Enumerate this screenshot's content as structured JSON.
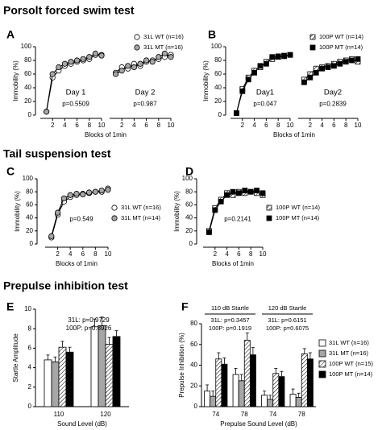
{
  "sections": [
    "Porsolt forced swim test",
    "Tail suspension test",
    "Prepulse inhibition test"
  ],
  "chart_data": [
    {
      "type": "line",
      "panel": "A",
      "xlabel": "Blocks of 1min",
      "ylabel": "Immobility (%)",
      "ylim": [
        0,
        100
      ],
      "yticks": [
        0,
        20,
        40,
        60,
        80,
        100
      ],
      "xlim": [
        0,
        10
      ],
      "xticks": [
        2,
        4,
        6,
        8,
        10
      ],
      "x": [
        1,
        2,
        3,
        4,
        5,
        6,
        7,
        8,
        9,
        10
      ],
      "legend": "upper right",
      "series": [
        {
          "name": "31L WT (n=16)",
          "color": "#ffffff",
          "marker": "circle"
        },
        {
          "name": "31L MT (n=16)",
          "color": "#a6a6a6",
          "marker": "circle"
        }
      ],
      "subplots": [
        {
          "label": "Day 1",
          "note": "p=0.5509",
          "values": [
            [
              5,
              55,
              65,
              72,
              75,
              78,
              80,
              82,
              88,
              88
            ],
            [
              5,
              60,
              70,
              75,
              78,
              80,
              82,
              85,
              90,
              87
            ]
          ]
        },
        {
          "label": "Day 2",
          "note": "p=0.987",
          "values": [
            [
              62,
              70,
              68,
              75,
              72,
              78,
              80,
              82,
              85,
              88
            ],
            [
              60,
              65,
              72,
              70,
              75,
              80,
              78,
              85,
              90,
              85
            ]
          ]
        }
      ]
    },
    {
      "type": "line",
      "panel": "B",
      "xlabel": "Blocks of 1min",
      "ylabel": "Immobility (%)",
      "ylim": [
        0,
        100
      ],
      "yticks": [
        0,
        20,
        40,
        60,
        80,
        100
      ],
      "xlim": [
        0,
        10
      ],
      "xticks": [
        2,
        4,
        6,
        8,
        10
      ],
      "x": [
        1,
        2,
        3,
        4,
        5,
        6,
        7,
        8,
        9,
        10
      ],
      "legend": "upper right",
      "series": [
        {
          "name": "100P WT (n=14)",
          "color": "#ffffff",
          "hatch": true,
          "marker": "square"
        },
        {
          "name": "100P MT (n=14)",
          "color": "#000000",
          "marker": "square"
        }
      ],
      "subplots": [
        {
          "label": "Day1",
          "note": "p=0.047",
          "values": [
            [
              3,
              38,
              55,
              65,
              70,
              78,
              82,
              85,
              86,
              88
            ],
            [
              3,
              35,
              52,
              62,
              72,
              75,
              85,
              86,
              87,
              88
            ]
          ]
        },
        {
          "label": "Day2",
          "note": "p=0.2839",
          "values": [
            [
              52,
              60,
              68,
              70,
              72,
              75,
              78,
              80,
              82,
              78
            ],
            [
              48,
              55,
              62,
              68,
              70,
              72,
              75,
              78,
              80,
              82
            ]
          ]
        }
      ]
    },
    {
      "type": "line",
      "panel": "C",
      "xlabel": "Blocks of 1min",
      "ylabel": "Immobility (%)",
      "ylim": [
        0,
        100
      ],
      "yticks": [
        0,
        20,
        40,
        60,
        80,
        100
      ],
      "xlim": [
        0,
        10
      ],
      "xticks": [
        2,
        4,
        6,
        8,
        10
      ],
      "x": [
        1,
        2,
        3,
        4,
        5,
        6,
        7,
        8,
        9,
        10
      ],
      "legend": "lower right",
      "series": [
        {
          "name": "31L WT (n=16)",
          "color": "#ffffff",
          "marker": "circle"
        },
        {
          "name": "31L MT (n=14)",
          "color": "#a6a6a6",
          "marker": "circle"
        }
      ],
      "subplots": [
        {
          "note": "p=0.549",
          "values": [
            [
              10,
              45,
              65,
              72,
              75,
              77,
              78,
              80,
              80,
              85
            ],
            [
              12,
              48,
              70,
              75,
              77,
              76,
              79,
              80,
              82,
              83
            ]
          ]
        }
      ]
    },
    {
      "type": "line",
      "panel": "D",
      "xlabel": "Blocks of 1min",
      "ylabel": "Immobility (%)",
      "ylim": [
        0,
        100
      ],
      "yticks": [
        0,
        20,
        40,
        60,
        80,
        100
      ],
      "xlim": [
        0,
        10
      ],
      "xticks": [
        2,
        4,
        6,
        8,
        10
      ],
      "x": [
        1,
        2,
        3,
        4,
        5,
        6,
        7,
        8,
        9,
        10
      ],
      "legend": "right",
      "series": [
        {
          "name": "100P WT (n=14)",
          "color": "#ffffff",
          "hatch": true,
          "marker": "square"
        },
        {
          "name": "100P MT (n=14)",
          "color": "#000000",
          "marker": "square"
        }
      ],
      "subplots": [
        {
          "note": "p=0.2141",
          "values": [
            [
              20,
              55,
              68,
              78,
              75,
              80,
              78,
              80,
              78,
              75
            ],
            [
              18,
              52,
              65,
              75,
              80,
              78,
              82,
              80,
              82,
              78
            ]
          ]
        }
      ]
    },
    {
      "type": "bar",
      "panel": "E",
      "xlabel": "Sound Level (dB)",
      "ylabel": "Startle Amplitude",
      "ylim": [
        0,
        10
      ],
      "yticks": [
        0,
        2,
        4,
        6,
        8,
        10
      ],
      "categories": [
        "110",
        "120"
      ],
      "notes": [
        "31L: p=0.9729",
        "100P: p=0.8926"
      ],
      "series": [
        {
          "color": "#ffffff",
          "values": [
            4.8,
            8.2
          ],
          "errors": [
            0.5,
            0.8
          ]
        },
        {
          "color": "#a6a6a6",
          "values": [
            4.6,
            8.3
          ],
          "errors": [
            0.5,
            0.9
          ]
        },
        {
          "color": "#ffffff",
          "hatch": true,
          "values": [
            6.1,
            6.4
          ],
          "errors": [
            0.6,
            0.7
          ]
        },
        {
          "color": "#000000",
          "values": [
            5.6,
            7.2
          ],
          "errors": [
            0.5,
            0.6
          ]
        }
      ]
    },
    {
      "type": "bar",
      "panel": "F",
      "xlabel": "Prepulse Sound Level (dB)",
      "ylabel": "Prepulse Inhibition (%)",
      "ylim": [
        0,
        80
      ],
      "yticks": [
        0,
        20,
        40,
        60,
        80
      ],
      "categories": [
        "74",
        "78",
        "74",
        "78"
      ],
      "legend": "right",
      "groups": [
        {
          "label": "110 dB Startle",
          "notes": [
            "31L: p=0.3457",
            "100P: p=0.1919"
          ]
        },
        {
          "label": "120 dB Startle",
          "notes": [
            "31L: p=0.6151",
            "100P: p=0.6075"
          ]
        }
      ],
      "series": [
        {
          "name": "31L WT (n=16)",
          "color": "#ffffff",
          "values": [
            15,
            31,
            11,
            12
          ],
          "errors": [
            6,
            6,
            4,
            5
          ]
        },
        {
          "name": "31L MT (n=16)",
          "color": "#a6a6a6",
          "values": [
            10,
            25,
            7,
            9
          ],
          "errors": [
            5,
            6,
            4,
            4
          ]
        },
        {
          "name": "100P WT (n=15)",
          "color": "#ffffff",
          "hatch": true,
          "values": [
            46,
            64,
            32,
            51
          ],
          "errors": [
            6,
            7,
            5,
            5
          ]
        },
        {
          "name": "100P MT (n=14)",
          "color": "#000000",
          "values": [
            41,
            50,
            29,
            46
          ],
          "errors": [
            6,
            7,
            5,
            6
          ]
        }
      ]
    }
  ]
}
